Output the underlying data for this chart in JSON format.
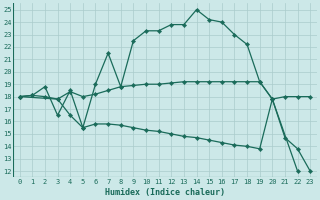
{
  "xlabel": "Humidex (Indice chaleur)",
  "bg_color": "#cce8e8",
  "line_color": "#1a6b5a",
  "grid_color": "#b0d0d0",
  "xlim": [
    -0.5,
    23.5
  ],
  "ylim": [
    11.5,
    25.5
  ],
  "xticks": [
    0,
    1,
    2,
    3,
    4,
    5,
    6,
    7,
    8,
    9,
    10,
    11,
    12,
    13,
    14,
    15,
    16,
    17,
    18,
    19,
    20,
    21,
    22,
    23
  ],
  "yticks": [
    12,
    13,
    14,
    15,
    16,
    17,
    18,
    19,
    20,
    21,
    22,
    23,
    24,
    25
  ],
  "line_upper_x": [
    0,
    1,
    2,
    3,
    4,
    5,
    6,
    7,
    8,
    9,
    10,
    11,
    12,
    13,
    14,
    15,
    16,
    17,
    18,
    19,
    20,
    21,
    22,
    23
  ],
  "line_upper_y": [
    18,
    18.1,
    18.8,
    16.5,
    18.5,
    15.5,
    19.0,
    21.5,
    18.8,
    22.5,
    23.3,
    23.3,
    23.8,
    23.8,
    25.0,
    24.2,
    24.0,
    23.0,
    22.2,
    19.2,
    17.8,
    14.7,
    13.8,
    12.0
  ],
  "line_mid_x": [
    0,
    1,
    2,
    3,
    4,
    5,
    6,
    7,
    8,
    9,
    10,
    11,
    12,
    13,
    14,
    15,
    16,
    17,
    18,
    19,
    20,
    21,
    22,
    23
  ],
  "line_mid_y": [
    18,
    18.1,
    18.0,
    17.8,
    18.4,
    18.0,
    18.2,
    18.5,
    18.8,
    18.9,
    19.0,
    19.0,
    19.1,
    19.2,
    19.2,
    19.2,
    19.2,
    19.2,
    19.2,
    19.2,
    17.8,
    18.0,
    18.0,
    18.0
  ],
  "line_lower_x": [
    0,
    3,
    4,
    5,
    6,
    7,
    8,
    9,
    10,
    11,
    12,
    13,
    14,
    15,
    16,
    17,
    18,
    19,
    20,
    22
  ],
  "line_lower_y": [
    18,
    17.8,
    16.5,
    15.5,
    15.8,
    15.8,
    15.7,
    15.5,
    15.3,
    15.2,
    15.0,
    14.8,
    14.7,
    14.5,
    14.3,
    14.1,
    14.0,
    13.8,
    17.8,
    12.0
  ]
}
